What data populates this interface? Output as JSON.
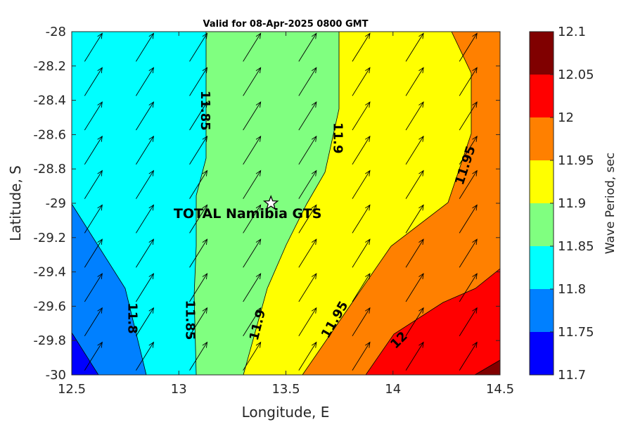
{
  "chart_data": {
    "type": "contour",
    "title": "Valid for 08-Apr-2025 0800 GMT",
    "xlabel": "Longitude, E",
    "ylabel": "Latitude, S",
    "xlim": [
      12.5,
      14.5
    ],
    "ylim": [
      -30,
      -28
    ],
    "x_ticks": [
      "12.5",
      "13",
      "13.5",
      "14",
      "14.5"
    ],
    "y_ticks": [
      "-28",
      "-28.2",
      "-28.4",
      "-28.6",
      "-28.8",
      "-29",
      "-29.2",
      "-29.4",
      "-29.6",
      "-29.8",
      "-30"
    ],
    "colorbar": {
      "label": "Wave Period, sec",
      "range": [
        11.7,
        12.1
      ],
      "levels": [
        11.7,
        11.75,
        11.8,
        11.85,
        11.9,
        11.95,
        12,
        12.05,
        12.1
      ],
      "tick_labels": [
        "11.7",
        "11.75",
        "11.8",
        "11.85",
        "11.9",
        "11.95",
        "12",
        "12.05",
        "12.1"
      ],
      "colors": [
        "#0000ff",
        "#0080ff",
        "#00ffff",
        "#80ff80",
        "#ffff00",
        "#ff8000",
        "#ff0000",
        "#800000"
      ]
    },
    "contour_labels": [
      {
        "text": "11.85",
        "lon": 13.12,
        "lat": -28.46
      },
      {
        "text": "11.9",
        "lon": 13.74,
        "lat": -28.62
      },
      {
        "text": "11.95",
        "lon": 14.34,
        "lat": -28.78
      },
      {
        "text": "11.8",
        "lon": 12.78,
        "lat": -29.67
      },
      {
        "text": "11.85",
        "lon": 13.05,
        "lat": -29.68
      },
      {
        "text": "11.9",
        "lon": 13.37,
        "lat": -29.71
      },
      {
        "text": "11.95",
        "lon": 13.73,
        "lat": -29.68
      },
      {
        "text": "12",
        "lon": 14.03,
        "lat": -29.8
      }
    ],
    "site": {
      "name": "TOTAL Namibia GTS",
      "lon": 13.43,
      "lat": -29.0
    },
    "arrows": {
      "direction": "toward NE",
      "lons": [
        12.57,
        12.81,
        13.06,
        13.31,
        13.57,
        13.82,
        14.07,
        14.32
      ],
      "lats": [
        -28.1,
        -28.3,
        -28.5,
        -28.7,
        -28.9,
        -29.1,
        -29.3,
        -29.5,
        -29.7,
        -29.9
      ]
    }
  }
}
